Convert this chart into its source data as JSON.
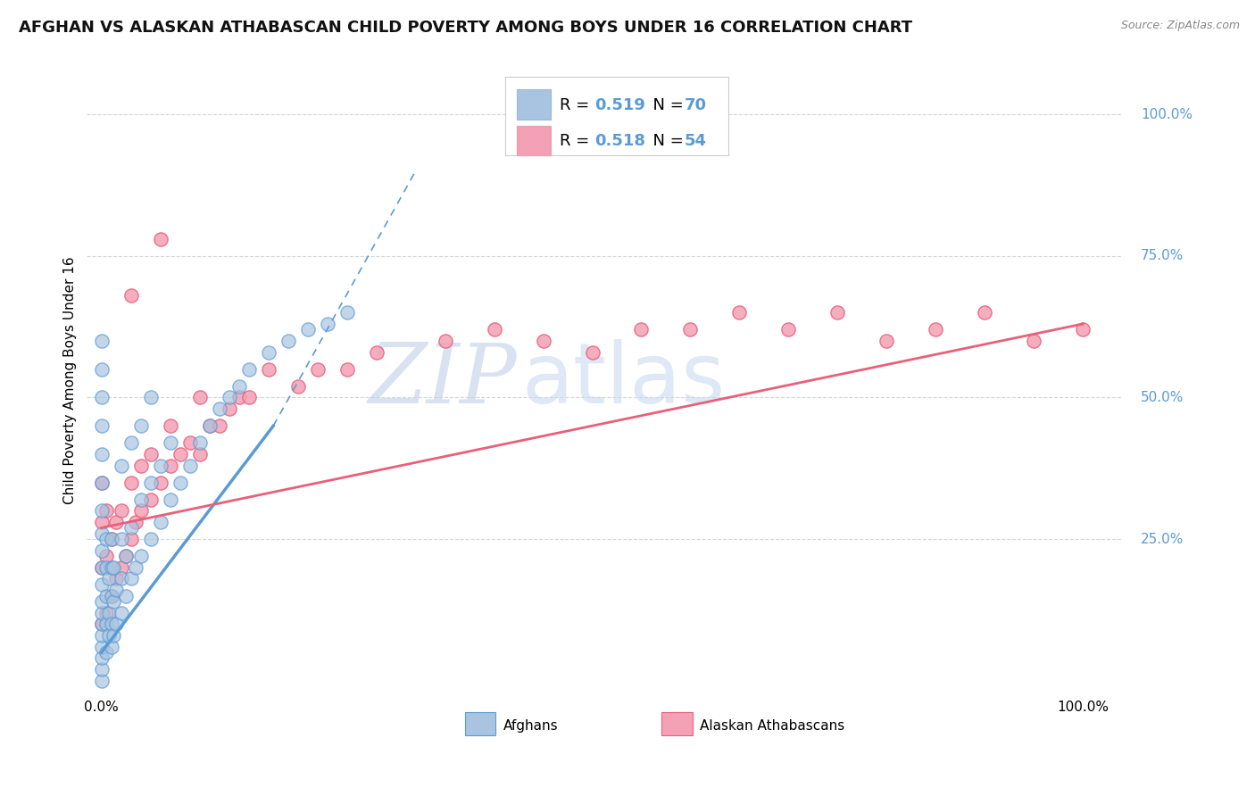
{
  "title": "AFGHAN VS ALASKAN ATHABASCAN CHILD POVERTY AMONG BOYS UNDER 16 CORRELATION CHART",
  "source": "Source: ZipAtlas.com",
  "ylabel": "Child Poverty Among Boys Under 16",
  "watermark_zip": "ZIP",
  "watermark_atlas": "atlas",
  "legend_row1": {
    "R": "0.519",
    "N": "70",
    "patch_color": "#a8c4e0"
  },
  "legend_row2": {
    "R": "0.518",
    "N": "54",
    "patch_color": "#f4a0b5"
  },
  "legend_labels_bottom": [
    "Afghans",
    "Alaskan Athabascans"
  ],
  "ytick_labels": [
    "100.0%",
    "75.0%",
    "50.0%",
    "25.0%"
  ],
  "ytick_values": [
    1.0,
    0.75,
    0.5,
    0.25
  ],
  "blue_scatter_x": [
    0.0,
    0.0,
    0.0,
    0.0,
    0.0,
    0.0,
    0.0,
    0.0,
    0.0,
    0.0,
    0.0,
    0.0,
    0.0,
    0.0,
    0.0,
    0.0,
    0.0,
    0.0,
    0.0,
    0.005,
    0.005,
    0.005,
    0.005,
    0.005,
    0.007,
    0.007,
    0.007,
    0.01,
    0.01,
    0.01,
    0.01,
    0.01,
    0.012,
    0.012,
    0.012,
    0.015,
    0.015,
    0.02,
    0.02,
    0.02,
    0.025,
    0.025,
    0.03,
    0.03,
    0.035,
    0.04,
    0.04,
    0.05,
    0.05,
    0.06,
    0.06,
    0.07,
    0.07,
    0.08,
    0.09,
    0.1,
    0.11,
    0.12,
    0.13,
    0.14,
    0.15,
    0.17,
    0.19,
    0.21,
    0.23,
    0.25,
    0.02,
    0.03,
    0.04,
    0.05
  ],
  "blue_scatter_y": [
    0.0,
    0.02,
    0.04,
    0.06,
    0.08,
    0.1,
    0.12,
    0.14,
    0.17,
    0.2,
    0.23,
    0.26,
    0.3,
    0.35,
    0.4,
    0.45,
    0.5,
    0.55,
    0.6,
    0.05,
    0.1,
    0.15,
    0.2,
    0.25,
    0.08,
    0.12,
    0.18,
    0.06,
    0.1,
    0.15,
    0.2,
    0.25,
    0.08,
    0.14,
    0.2,
    0.1,
    0.16,
    0.12,
    0.18,
    0.25,
    0.15,
    0.22,
    0.18,
    0.27,
    0.2,
    0.22,
    0.32,
    0.25,
    0.35,
    0.28,
    0.38,
    0.32,
    0.42,
    0.35,
    0.38,
    0.42,
    0.45,
    0.48,
    0.5,
    0.52,
    0.55,
    0.58,
    0.6,
    0.62,
    0.63,
    0.65,
    0.38,
    0.42,
    0.45,
    0.5
  ],
  "pink_scatter_x": [
    0.0,
    0.0,
    0.0,
    0.0,
    0.005,
    0.005,
    0.005,
    0.01,
    0.01,
    0.015,
    0.015,
    0.02,
    0.02,
    0.025,
    0.03,
    0.03,
    0.035,
    0.04,
    0.04,
    0.05,
    0.05,
    0.06,
    0.07,
    0.07,
    0.08,
    0.09,
    0.1,
    0.1,
    0.11,
    0.12,
    0.13,
    0.14,
    0.15,
    0.17,
    0.2,
    0.22,
    0.25,
    0.28,
    0.35,
    0.4,
    0.45,
    0.5,
    0.55,
    0.6,
    0.65,
    0.7,
    0.75,
    0.8,
    0.85,
    0.9,
    0.95,
    1.0,
    0.03,
    0.06
  ],
  "pink_scatter_y": [
    0.1,
    0.2,
    0.28,
    0.35,
    0.12,
    0.22,
    0.3,
    0.15,
    0.25,
    0.18,
    0.28,
    0.2,
    0.3,
    0.22,
    0.25,
    0.35,
    0.28,
    0.3,
    0.38,
    0.32,
    0.4,
    0.35,
    0.38,
    0.45,
    0.4,
    0.42,
    0.4,
    0.5,
    0.45,
    0.45,
    0.48,
    0.5,
    0.5,
    0.55,
    0.52,
    0.55,
    0.55,
    0.58,
    0.6,
    0.62,
    0.6,
    0.58,
    0.62,
    0.62,
    0.65,
    0.62,
    0.65,
    0.6,
    0.62,
    0.65,
    0.6,
    0.62,
    0.68,
    0.78
  ],
  "blue_line_solid": [
    [
      0.0,
      0.05
    ],
    [
      0.175,
      0.45
    ]
  ],
  "blue_line_dashed": [
    [
      0.175,
      0.45
    ],
    [
      0.32,
      0.9
    ]
  ],
  "pink_line": [
    [
      0.0,
      0.27
    ],
    [
      1.0,
      0.63
    ]
  ],
  "blue_color": "#5b9bd5",
  "pink_color": "#e8607a",
  "blue_scatter_color": "#a8c4e0",
  "pink_scatter_color": "#f4a0b5",
  "grid_color": "#cccccc",
  "background_color": "#ffffff",
  "title_fontsize": 13,
  "axis_fontsize": 11,
  "legend_fontsize": 14,
  "watermark_zip_color": "#c0cfe8",
  "watermark_atlas_color": "#c8daf0",
  "watermark_fontsize": 68
}
